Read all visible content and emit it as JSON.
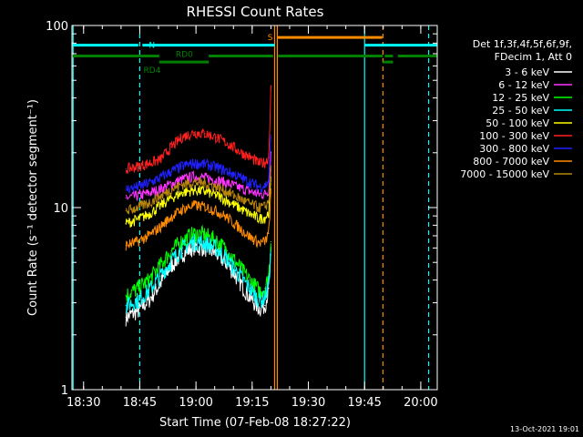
{
  "chart_data": {
    "type": "line",
    "title": "RHESSI Count Rates",
    "xlabel": "Start Time (07-Feb-08 18:27:22)",
    "ylabel": "Count Rate (s⁻¹ detector segment⁻¹)",
    "x_unit": "minutes after 18:27:22",
    "xlim": [
      -0.5,
      97
    ],
    "ylim": [
      1,
      100
    ],
    "yscale": "log",
    "grid": false,
    "x_ticks": [
      {
        "x": 2.6,
        "label": "18:30"
      },
      {
        "x": 17.6,
        "label": "18:45"
      },
      {
        "x": 32.6,
        "label": "19:00"
      },
      {
        "x": 47.6,
        "label": "19:15"
      },
      {
        "x": 62.6,
        "label": "19:30"
      },
      {
        "x": 77.6,
        "label": "19:45"
      },
      {
        "x": 92.6,
        "label": "20:00"
      }
    ],
    "y_ticks": [
      {
        "y": 1,
        "label": "1"
      },
      {
        "y": 10,
        "label": "10"
      },
      {
        "y": 100,
        "label": "100"
      }
    ],
    "legend": {
      "placement": "right",
      "header": [
        "Det 1f,3f,4f,5f,6f,9f,",
        "FDecim 1, Att 0"
      ]
    },
    "x": [
      13.9,
      17,
      20,
      23,
      26,
      29,
      32,
      35,
      38,
      41,
      44,
      47,
      49.5,
      51,
      52,
      52.6
    ],
    "series": [
      {
        "name": "3 - 6 keV",
        "color": "#ffffff",
        "values": [
          2.5,
          2.7,
          3.1,
          3.8,
          4.8,
          5.6,
          6.1,
          6.0,
          5.6,
          4.9,
          4.0,
          3.2,
          2.8,
          2.9,
          3.6,
          5.5
        ]
      },
      {
        "name": "6 - 12 keV",
        "color": "#ff33ff",
        "values": [
          11.3,
          11.6,
          12.0,
          12.6,
          13.5,
          14.3,
          14.8,
          14.6,
          14.2,
          13.6,
          12.9,
          12.3,
          11.8,
          11.9,
          12.4,
          20
        ]
      },
      {
        "name": "12 - 25 keV",
        "color": "#00ff00",
        "values": [
          3.3,
          3.6,
          4.0,
          4.8,
          5.8,
          6.6,
          7.2,
          7.1,
          6.6,
          5.8,
          4.8,
          4.0,
          3.5,
          3.6,
          4.2,
          6.5
        ]
      },
      {
        "name": "25 - 50 keV",
        "color": "#00ffff",
        "values": [
          2.9,
          3.1,
          3.5,
          4.2,
          5.1,
          6.0,
          6.5,
          6.4,
          6.0,
          5.2,
          4.3,
          3.6,
          3.1,
          3.2,
          3.8,
          5.8
        ]
      },
      {
        "name": "50 - 100 keV",
        "color": "#ffff00",
        "values": [
          8.2,
          8.6,
          9.2,
          10.2,
          11.3,
          12.1,
          12.5,
          12.3,
          11.7,
          10.9,
          10.0,
          9.2,
          8.7,
          8.8,
          9.4,
          14
        ]
      },
      {
        "name": "100 - 300 keV",
        "color": "#ff2020",
        "values": [
          16.3,
          16.8,
          17.5,
          18.3,
          21.5,
          24.5,
          25.8,
          25.5,
          24.3,
          22.5,
          20.5,
          18.9,
          17.5,
          17.7,
          18.8,
          45
        ]
      },
      {
        "name": "300 - 800 keV",
        "color": "#2020ff",
        "values": [
          12.6,
          13.0,
          13.6,
          14.6,
          15.8,
          16.9,
          17.5,
          17.3,
          16.7,
          15.8,
          14.8,
          13.8,
          13.0,
          13.2,
          14.0,
          25
        ]
      },
      {
        "name": "800 - 7000 keV",
        "color": "#ff8c00",
        "values": [
          6.2,
          6.5,
          7.0,
          7.8,
          8.9,
          9.8,
          10.3,
          10.1,
          9.6,
          8.8,
          7.8,
          6.9,
          6.4,
          6.5,
          7.2,
          12
        ]
      },
      {
        "name": "7000 - 15000 keV",
        "color": "#b8860b",
        "values": [
          9.6,
          10.0,
          10.6,
          11.5,
          12.6,
          13.4,
          13.8,
          13.6,
          13.0,
          12.2,
          11.3,
          10.5,
          10.0,
          10.1,
          10.8,
          16
        ]
      }
    ],
    "flag_bars": [
      {
        "label": "N",
        "color": "#00ffff",
        "y": 78,
        "segments": [
          [
            -0.5,
            17.2
          ],
          [
            18.3,
            53.6
          ],
          [
            77.6,
            97
          ]
        ]
      },
      {
        "label": "S",
        "color": "#ff8c00",
        "y": 86,
        "segments": [
          [
            54.3,
            82.3
          ]
        ]
      },
      {
        "label": "RD0",
        "color": "#008000",
        "y": 68,
        "segments": [
          [
            -0.5,
            22.8
          ],
          [
            36,
            53.2
          ],
          [
            54.5,
            82.5
          ],
          [
            83,
            85.2
          ],
          [
            86.5,
            97
          ]
        ]
      },
      {
        "label": "RD4",
        "color": "#008000",
        "y": 63,
        "segments": [
          [
            22.8,
            36
          ],
          [
            82.5,
            83
          ],
          [
            83,
            85.2
          ]
        ]
      }
    ],
    "vlines": [
      {
        "x": -0.2,
        "color": "#00ffff",
        "style": "solid"
      },
      {
        "x": 17.6,
        "color": "#00ffff",
        "style": "dashed"
      },
      {
        "x": 53.6,
        "color": "#ff8c00",
        "style": "solid"
      },
      {
        "x": 54.3,
        "color": "#ff8c00",
        "style": "solid"
      },
      {
        "x": 77.6,
        "color": "#00ffff",
        "style": "solid"
      },
      {
        "x": 82.5,
        "color": "#ff8c00",
        "style": "dashed"
      },
      {
        "x": 94.7,
        "color": "#00ffff",
        "style": "dashed"
      }
    ]
  },
  "footer": {
    "timestamp": "13-Oct-2021 19:01"
  }
}
